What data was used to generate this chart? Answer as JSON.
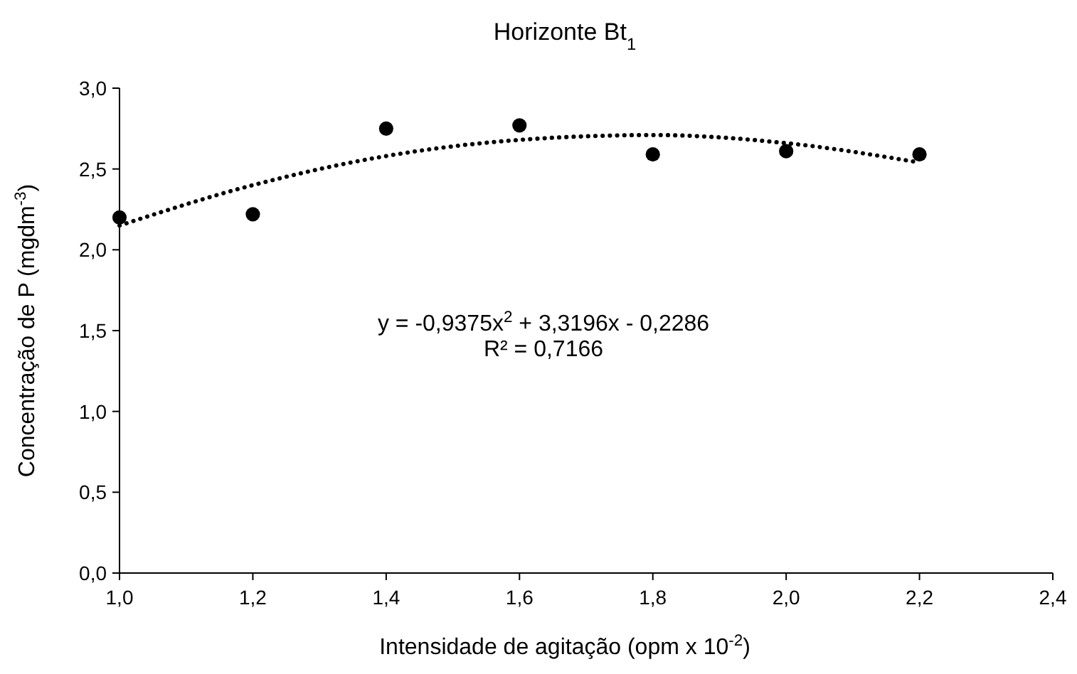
{
  "chart_data": {
    "type": "scatter",
    "title": "Horizonte Bt$_{1}$",
    "xlabel": "Intensidade de agitação (opm x 10$^{-2}$)",
    "ylabel": "Concentração de P (mgdm$^{-3}$)",
    "x": [
      1.0,
      1.2,
      1.4,
      1.6,
      1.8,
      2.0,
      2.2
    ],
    "series": [
      {
        "color": "#000000",
        "marker": "circle",
        "values": [
          2.2,
          2.22,
          2.75,
          2.77,
          2.59,
          2.61,
          2.59
        ]
      },
      {
        "type": "line",
        "color": "#000000",
        "line_style": "dotted",
        "marker": "none",
        "x": [
          1.0,
          1.2,
          1.4,
          1.6,
          1.8,
          2.0,
          2.2
        ],
        "values": [
          2.15,
          2.4,
          2.58,
          2.68,
          2.71,
          2.66,
          2.54
        ]
      }
    ],
    "annotations": [
      "y = -0,9375x$^{2}$ + 3,3196x - 0,2286",
      "R² = 0,7166"
    ],
    "xlim": [
      1.0,
      2.4
    ],
    "ylim": [
      0,
      3
    ],
    "xticks": [
      {
        "value": 1.0,
        "label": "1,0"
      },
      {
        "value": 1.2,
        "label": "1,2"
      },
      {
        "value": 1.4,
        "label": "1,4"
      },
      {
        "value": 1.6,
        "label": "1,6"
      },
      {
        "value": 1.8,
        "label": "1,8"
      },
      {
        "value": 2.0,
        "label": "2,0"
      },
      {
        "value": 2.2,
        "label": "2,2"
      },
      {
        "value": 2.4,
        "label": "2,4"
      }
    ],
    "yticks": [
      {
        "value": 0,
        "label": "0,0"
      },
      {
        "value": 0.5,
        "label": "0,5"
      },
      {
        "value": 1,
        "label": "1,0"
      },
      {
        "value": 1.5,
        "label": "1,5"
      },
      {
        "value": 2,
        "label": "2,0"
      },
      {
        "value": 2.5,
        "label": "2,5"
      },
      {
        "value": 3,
        "label": "3,0"
      }
    ],
    "grid": false
  }
}
